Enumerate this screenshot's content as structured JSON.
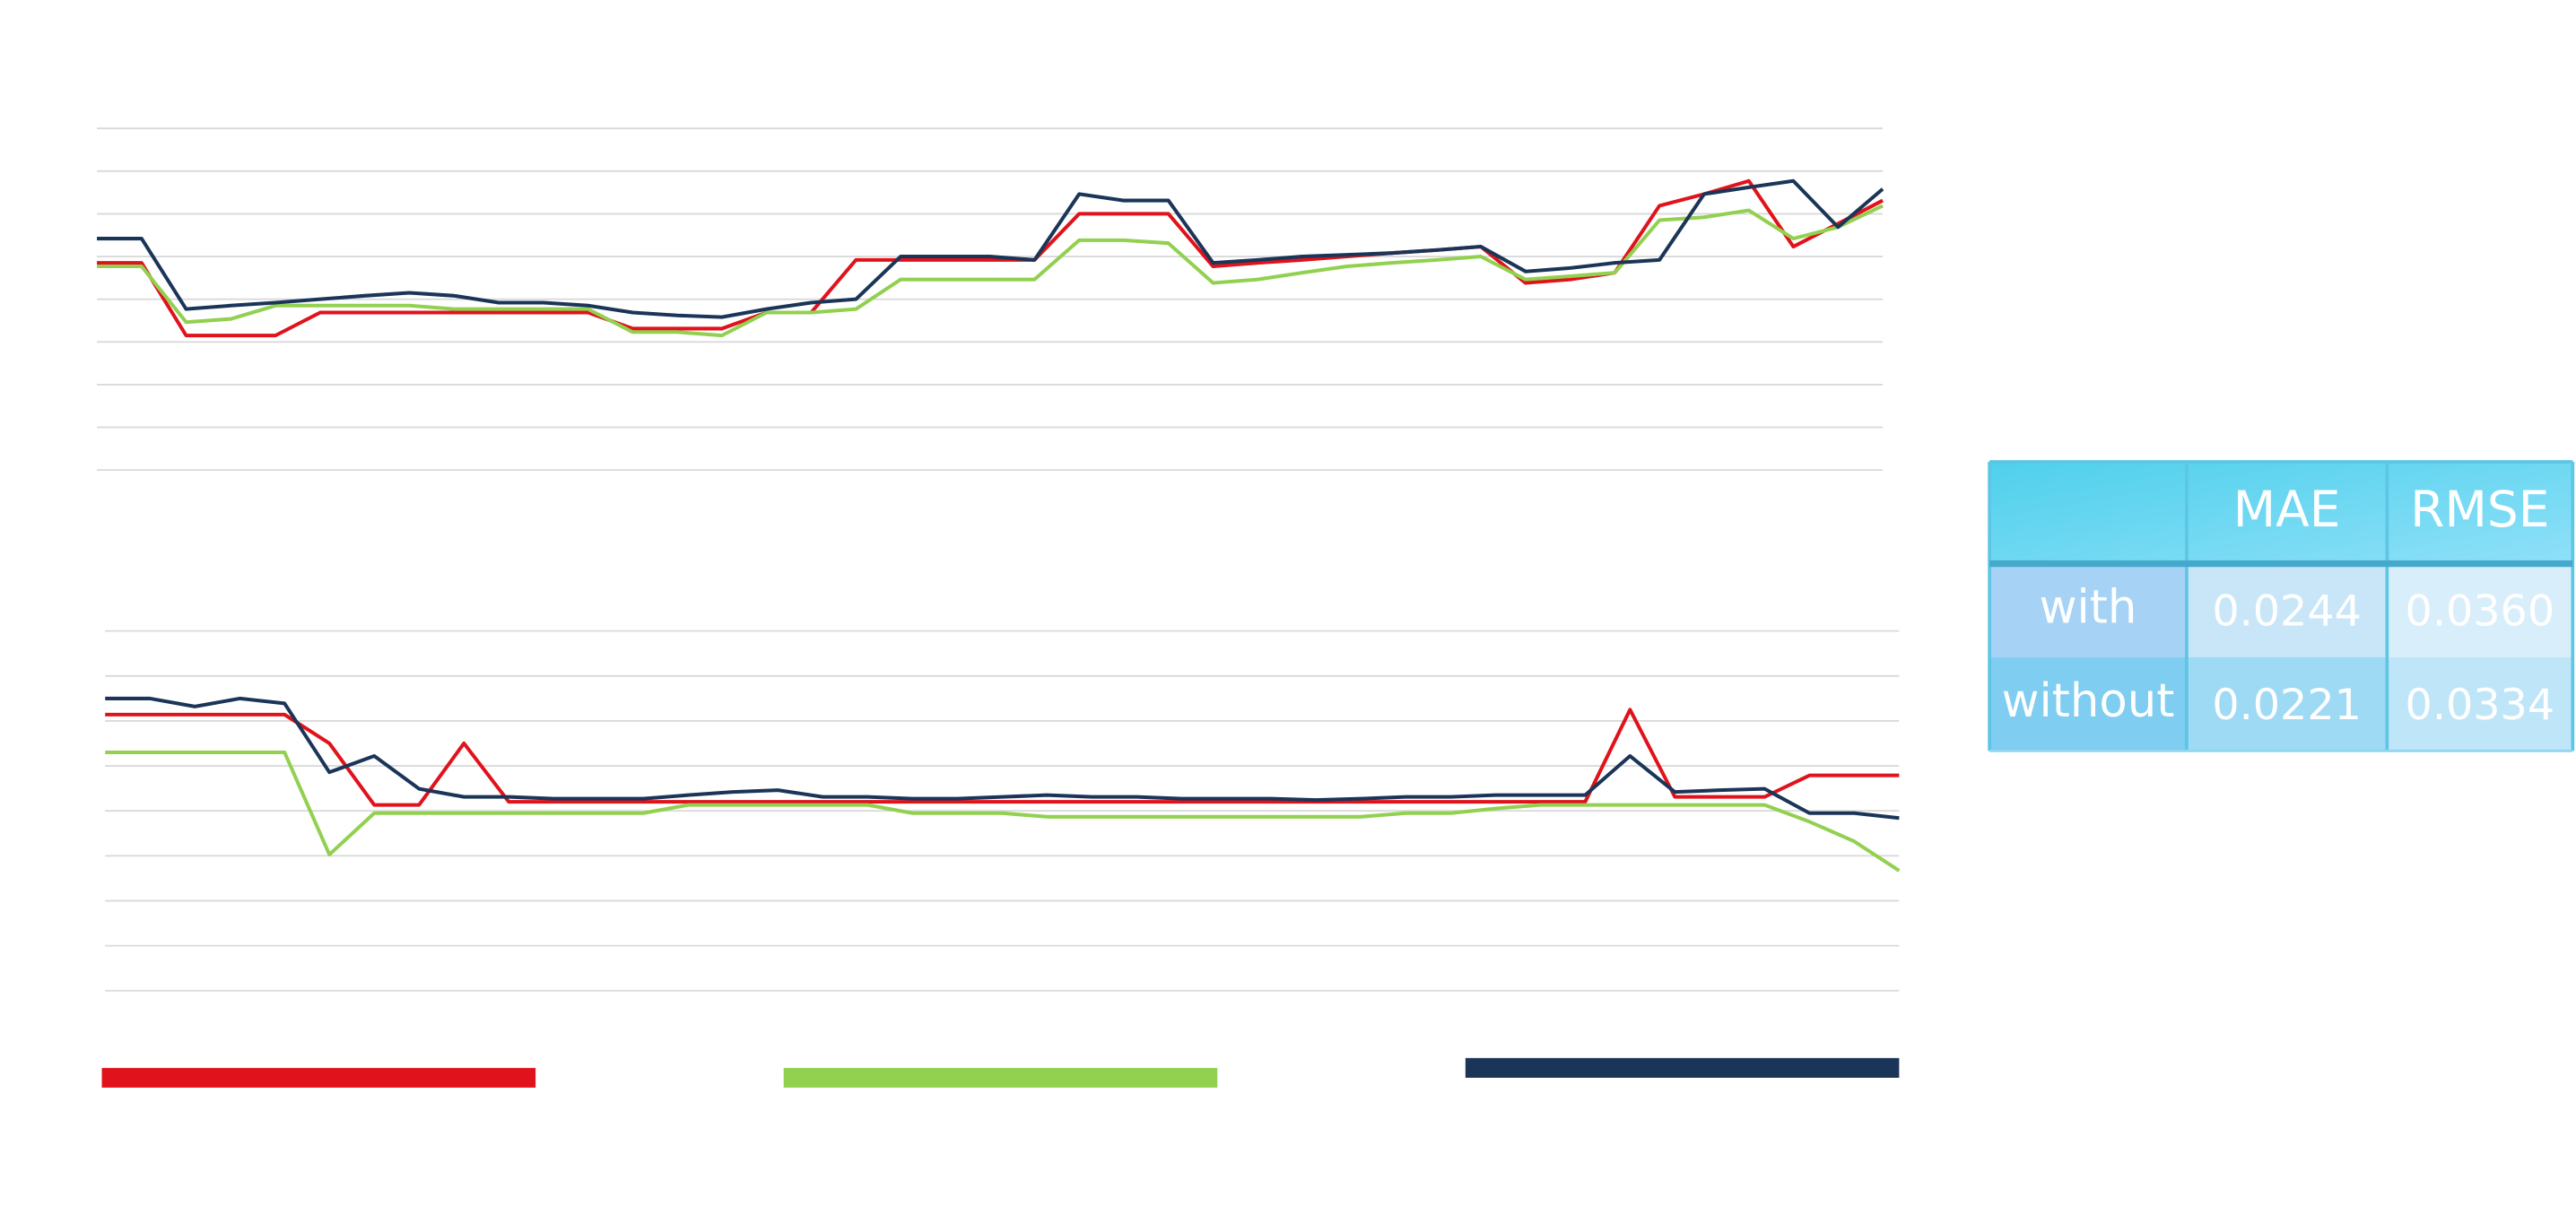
{
  "chart_data": [
    {
      "type": "line",
      "grid": true,
      "x": [
        0,
        2.5,
        5,
        7.5,
        10,
        12.5,
        15,
        17.5,
        20,
        22.5,
        25,
        27.5,
        30,
        32.5,
        35,
        37.5,
        40,
        42.5,
        45,
        47.5,
        50,
        52.5,
        55,
        57.5,
        60,
        62.5,
        65,
        67.5,
        70,
        72.5,
        75,
        77.5,
        80,
        82.5,
        85,
        87.5,
        90,
        92.5,
        95,
        97.5,
        100
      ],
      "xlim": [
        0,
        100
      ],
      "ylim": [
        0,
        8
      ],
      "yticks": [
        0,
        1,
        2,
        3,
        4,
        5,
        6,
        7,
        8
      ],
      "series": [
        {
          "color": "#e0121b",
          "values": [
            4.85,
            4.85,
            3.15,
            3.15,
            3.15,
            3.69,
            3.69,
            3.69,
            3.69,
            3.69,
            3.69,
            3.69,
            3.31,
            3.31,
            3.31,
            3.69,
            3.69,
            4.92,
            4.92,
            4.92,
            4.92,
            4.92,
            6.0,
            6.0,
            6.0,
            4.77,
            4.85,
            4.92,
            5.0,
            5.08,
            5.15,
            5.23,
            4.38,
            4.46,
            4.62,
            6.19,
            6.46,
            6.77,
            5.23,
            5.77,
            6.31
          ]
        },
        {
          "color": "#92d050",
          "values": [
            4.77,
            4.77,
            3.46,
            3.54,
            3.85,
            3.85,
            3.85,
            3.85,
            3.77,
            3.77,
            3.77,
            3.77,
            3.23,
            3.23,
            3.15,
            3.69,
            3.69,
            3.77,
            4.46,
            4.46,
            4.46,
            4.46,
            5.38,
            5.38,
            5.31,
            4.38,
            4.46,
            4.62,
            4.77,
            4.85,
            4.92,
            5.0,
            4.46,
            4.54,
            4.62,
            5.85,
            5.92,
            6.08,
            5.42,
            5.69,
            6.19
          ]
        },
        {
          "color": "#1b3558",
          "values": [
            5.42,
            5.42,
            3.77,
            3.85,
            3.92,
            4.0,
            4.08,
            4.15,
            4.08,
            3.92,
            3.92,
            3.85,
            3.69,
            3.62,
            3.58,
            3.77,
            3.92,
            4.0,
            5.0,
            5.0,
            5.0,
            4.92,
            6.46,
            6.31,
            6.31,
            4.85,
            4.92,
            5.0,
            5.04,
            5.08,
            5.15,
            5.23,
            4.65,
            4.73,
            4.85,
            4.92,
            6.46,
            6.62,
            6.77,
            5.69,
            6.58
          ]
        }
      ]
    },
    {
      "type": "line",
      "grid": true,
      "x": [
        0,
        2.5,
        5,
        7.5,
        10,
        12.5,
        15,
        17.5,
        20,
        22.5,
        25,
        27.5,
        30,
        32.5,
        35,
        37.5,
        40,
        42.5,
        45,
        47.5,
        50,
        52.5,
        55,
        57.5,
        60,
        62.5,
        65,
        67.5,
        70,
        72.5,
        75,
        77.5,
        80,
        82.5,
        85,
        87.5,
        90,
        92.5,
        95,
        97.5,
        100
      ],
      "xlim": [
        0,
        100
      ],
      "ylim": [
        0,
        8
      ],
      "yticks": [
        0,
        1,
        2,
        3,
        4,
        5,
        6,
        7,
        8
      ],
      "series": [
        {
          "color": "#e0121b",
          "values": [
            6.14,
            6.14,
            6.14,
            6.14,
            6.14,
            5.5,
            4.13,
            4.13,
            5.5,
            4.2,
            4.2,
            4.2,
            4.2,
            4.2,
            4.2,
            4.2,
            4.2,
            4.2,
            4.2,
            4.2,
            4.2,
            4.2,
            4.2,
            4.2,
            4.2,
            4.2,
            4.2,
            4.2,
            4.2,
            4.2,
            4.2,
            4.2,
            4.2,
            4.2,
            6.25,
            4.31,
            4.31,
            4.31,
            4.79,
            4.79,
            4.79
          ]
        },
        {
          "color": "#92d050",
          "values": [
            5.3,
            5.3,
            5.3,
            5.3,
            5.3,
            3.03,
            3.95,
            3.95,
            3.95,
            3.95,
            3.95,
            3.95,
            3.95,
            4.13,
            4.13,
            4.13,
            4.13,
            4.13,
            3.95,
            3.95,
            3.95,
            3.87,
            3.87,
            3.87,
            3.87,
            3.87,
            3.87,
            3.87,
            3.87,
            3.95,
            3.95,
            4.05,
            4.13,
            4.13,
            4.13,
            4.13,
            4.13,
            4.13,
            3.76,
            3.32,
            2.67
          ]
        },
        {
          "color": "#1b3558",
          "values": [
            6.5,
            6.5,
            6.32,
            6.5,
            6.39,
            4.86,
            5.22,
            4.49,
            4.31,
            4.31,
            4.27,
            4.27,
            4.27,
            4.35,
            4.42,
            4.46,
            4.31,
            4.31,
            4.27,
            4.27,
            4.31,
            4.35,
            4.31,
            4.31,
            4.27,
            4.27,
            4.27,
            4.24,
            4.27,
            4.31,
            4.31,
            4.35,
            4.35,
            4.35,
            5.22,
            4.42,
            4.46,
            4.49,
            3.95,
            3.95,
            3.84
          ]
        }
      ]
    }
  ],
  "table": {
    "header": [
      "MAE",
      "RMSE"
    ],
    "rows": [
      {
        "label": "with",
        "values": [
          "0.0244",
          "0.0360"
        ]
      },
      {
        "label": "without",
        "values": [
          "0.0221",
          "0.0334"
        ]
      }
    ]
  }
}
